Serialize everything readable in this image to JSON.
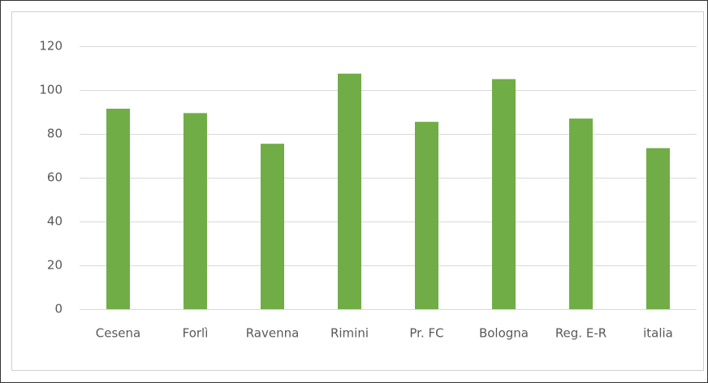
{
  "chart_data": {
    "type": "bar",
    "categories": [
      "Cesena",
      "Forlì",
      "Ravenna",
      "Rimini",
      "Pr. FC",
      "Bologna",
      "Reg. E-R",
      "italia"
    ],
    "values": [
      91.5,
      89.5,
      75.5,
      107.5,
      85.5,
      105,
      87,
      73.5
    ],
    "color": "#70ad47",
    "ylim": [
      0,
      120
    ],
    "yticks": [
      0,
      20,
      40,
      60,
      80,
      100,
      120
    ],
    "grid": true
  }
}
